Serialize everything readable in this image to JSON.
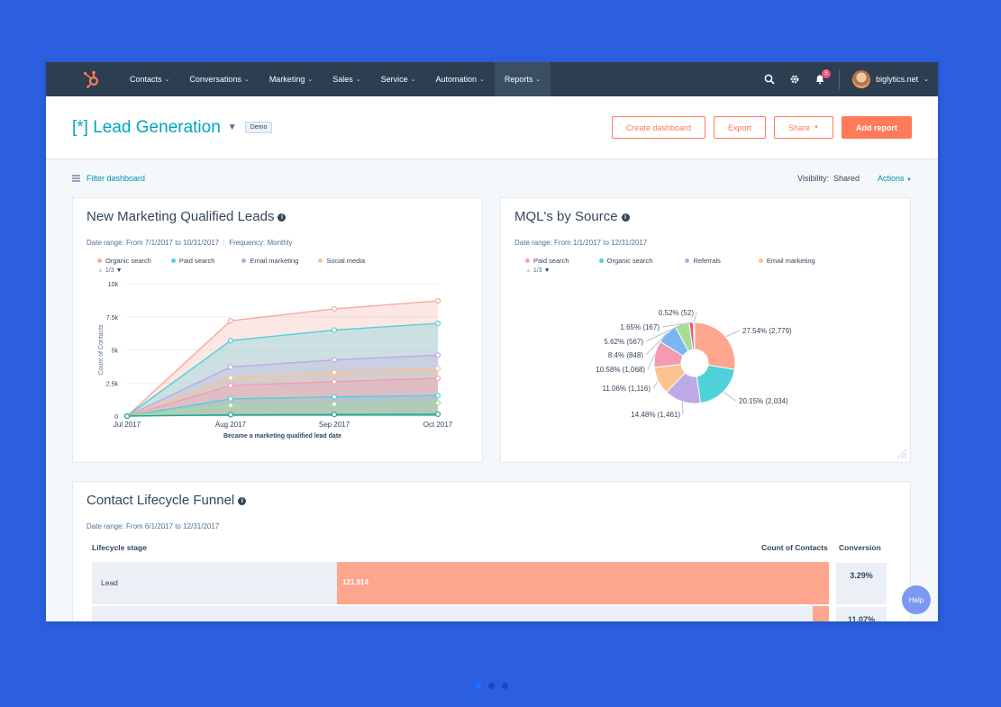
{
  "nav": {
    "items": [
      {
        "label": "Contacts"
      },
      {
        "label": "Conversations"
      },
      {
        "label": "Marketing"
      },
      {
        "label": "Sales"
      },
      {
        "label": "Service"
      },
      {
        "label": "Automation"
      },
      {
        "label": "Reports"
      }
    ],
    "active": "Reports",
    "notification_count": "5",
    "account": "biglytics.net"
  },
  "header": {
    "title": "[*] Lead Generation",
    "tag": "Demo",
    "buttons": {
      "create": "Create dashboard",
      "export": "Export",
      "share": "Share",
      "add": "Add report"
    }
  },
  "filterbar": {
    "filter": "Filter dashboard",
    "visibility_label": "Visibility:",
    "visibility_value": "Shared",
    "actions": "Actions"
  },
  "colors": {
    "organic": "#f8a9a0",
    "paid": "#4fd1d9",
    "email": "#bfa8e6",
    "social": "#fbc38e",
    "referrals": "#f49bb4",
    "accent": "#ff7a59"
  },
  "card1": {
    "title": "New Marketing Qualified Leads",
    "date_range": "Date range: From 7/1/2017 to 10/31/2017",
    "frequency": "Frequency: Monthly",
    "legend": [
      "Organic search",
      "Paid search",
      "Email marketing",
      "Social media"
    ],
    "pager": "1/3"
  },
  "card2": {
    "title": "MQL's by Source",
    "date_range": "Date range: From 1/1/2017 to 12/31/2017",
    "legend": [
      "Paid search",
      "Organic search",
      "Referrals",
      "Email marketing"
    ],
    "pager": "1/3"
  },
  "card3": {
    "title": "Contact Lifecycle Funnel",
    "date_range": "Date range: From 6/1/2017 to 12/31/2017",
    "col_stage": "Lifecycle stage",
    "col_count": "Count of Contacts",
    "col_conversion": "Conversion",
    "rows": [
      {
        "stage": "Lead",
        "count": "121,914",
        "conversion": "3.29%",
        "count_fraction": 1.0
      },
      {
        "stage": "",
        "count": "",
        "conversion": "11.07%",
        "count_fraction": 0.033
      }
    ]
  },
  "help": "Help",
  "chart_data": [
    {
      "type": "area",
      "title": "New Marketing Qualified Leads",
      "xlabel": "Became a marketing qualified lead date",
      "ylabel": "Count of Contacts",
      "x": [
        "Jul 2017",
        "Aug 2017",
        "Sep 2017",
        "Oct 2017"
      ],
      "yticks": [
        "0",
        "2.5k",
        "5k",
        "7.5k",
        "10k"
      ],
      "ylim": [
        0,
        10000
      ],
      "series": [
        {
          "values": [
            0,
            100,
            120,
            140
          ],
          "color": "#1fa88d"
        },
        {
          "values": [
            0,
            800,
            900,
            1000
          ],
          "color": "#a6dd95"
        },
        {
          "values": [
            0,
            1300,
            1450,
            1550
          ],
          "color": "#4fd1d9"
        },
        {
          "values": [
            0,
            2300,
            2600,
            2850
          ],
          "color": "#f49bb4"
        },
        {
          "values": [
            0,
            2900,
            3300,
            3600
          ],
          "color": "#fbc38e"
        },
        {
          "values": [
            0,
            3700,
            4250,
            4600
          ],
          "color": "#bfa8e6"
        },
        {
          "values": [
            0,
            5700,
            6500,
            7000
          ],
          "color": "#4fd1d9"
        },
        {
          "values": [
            0,
            7200,
            8100,
            8700
          ],
          "color": "#f8a9a0"
        }
      ],
      "grid": true
    },
    {
      "type": "pie",
      "title": "MQL's by Source",
      "slices": [
        {
          "label": "27.54% (2,779)",
          "value": 27.54,
          "color": "#fea58e"
        },
        {
          "label": "20.15% (2,034)",
          "value": 20.15,
          "color": "#4fd1d9"
        },
        {
          "label": "14.48% (1,461)",
          "value": 14.48,
          "color": "#bfa8e6"
        },
        {
          "label": "11.06% (1,116)",
          "value": 11.06,
          "color": "#fbc38e"
        },
        {
          "label": "10.58% (1,068)",
          "value": 10.58,
          "color": "#f49bb4"
        },
        {
          "label": "8.4% (848)",
          "value": 8.4,
          "color": "#7bb6f2"
        },
        {
          "label": "5.62% (567)",
          "value": 5.62,
          "color": "#a6dd95"
        },
        {
          "label": "1.65% (167)",
          "value": 1.65,
          "color": "#f2547d"
        },
        {
          "label": "0.52% (52)",
          "value": 0.52,
          "color": "#c5a36a"
        }
      ]
    }
  ]
}
